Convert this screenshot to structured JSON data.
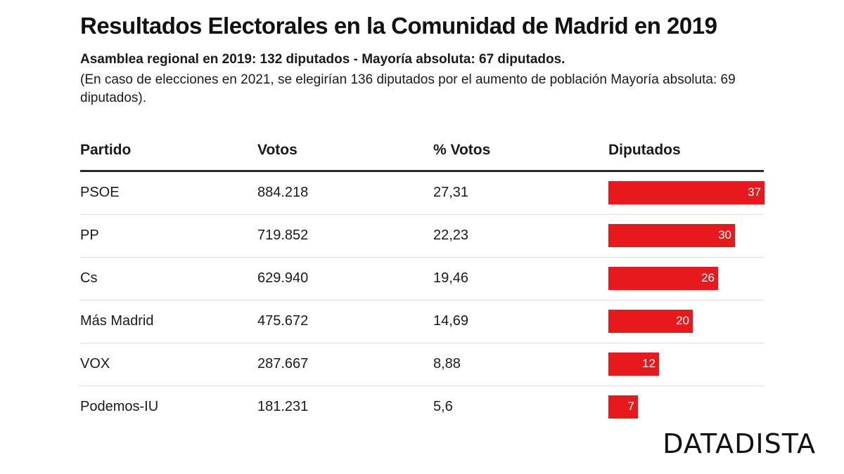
{
  "title": "Resultados Electorales en la Comunidad de Madrid en 2019",
  "subtitle": "Asamblea regional en 2019: 132 diputados - Mayoría absoluta: 67 diputados.",
  "note": "(En caso de elecciones en 2021, se elegirían 136 diputados por el aumento de población Mayoría absoluta: 69 diputados).",
  "headers": {
    "party": "Partido",
    "votes": "Votos",
    "pct": "% Votos",
    "seats": "Diputados"
  },
  "rows": [
    {
      "party": "PSOE",
      "votes": "884.218",
      "pct": "27,31",
      "seats": "37"
    },
    {
      "party": "PP",
      "votes": "719.852",
      "pct": "22,23",
      "seats": "30"
    },
    {
      "party": "Cs",
      "votes": "629.940",
      "pct": "19,46",
      "seats": "26"
    },
    {
      "party": "Más Madrid",
      "votes": "475.672",
      "pct": "14,69",
      "seats": "20"
    },
    {
      "party": "VOX",
      "votes": "287.667",
      "pct": "8,88",
      "seats": "12"
    },
    {
      "party": "Podemos-IU",
      "votes": "181.231",
      "pct": "5,6",
      "seats": "7"
    }
  ],
  "logo": "DATADISTA",
  "colors": {
    "bar": "#e8191c"
  },
  "chart_data": {
    "type": "bar",
    "title": "Resultados Electorales en la Comunidad de Madrid en 2019",
    "categories": [
      "PSOE",
      "PP",
      "Cs",
      "Más Madrid",
      "VOX",
      "Podemos-IU"
    ],
    "series": [
      {
        "name": "Diputados",
        "values": [
          37,
          30,
          26,
          20,
          12,
          7
        ]
      }
    ],
    "ylim": [
      0,
      37
    ]
  }
}
